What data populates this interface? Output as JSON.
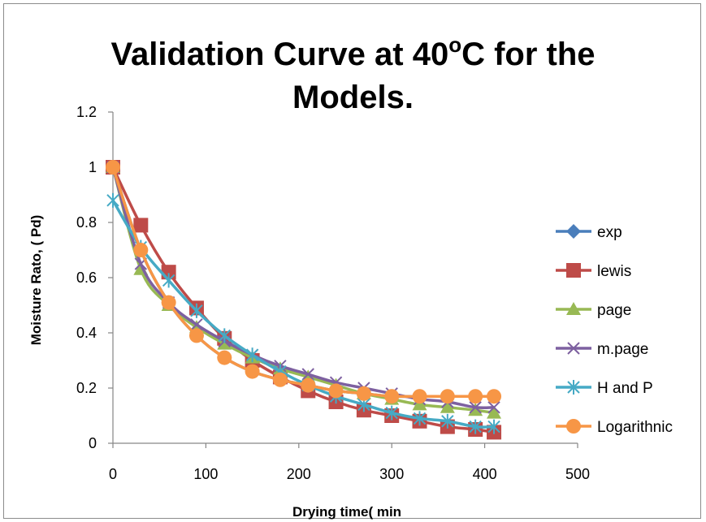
{
  "chart_data": {
    "type": "line",
    "title_pre": "Validation Curve at 40",
    "title_sup": "o",
    "title_post": "C for the",
    "title_line2": "Models.",
    "xlabel": "Drying time( min",
    "ylabel": "Moisture Rato, ( Pd)",
    "xlim": [
      0,
      500
    ],
    "ylim": [
      0,
      1.2
    ],
    "xticks": [
      "0",
      "100",
      "200",
      "300",
      "400",
      "500"
    ],
    "yticks": [
      "0",
      "0.2",
      "0.4",
      "0.6",
      "0.8",
      "1",
      "1.2"
    ],
    "grid": false,
    "legend_position": "right",
    "x": [
      0,
      30,
      60,
      90,
      120,
      150,
      180,
      210,
      240,
      270,
      300,
      330,
      360,
      390,
      410
    ],
    "series": [
      {
        "name": "exp",
        "color": "#4a7ebb",
        "marker": "diamond",
        "values": [
          1.0,
          0.7,
          0.51,
          0.39,
          0.31,
          0.26,
          0.23,
          0.21,
          0.19,
          0.18,
          0.17,
          0.17,
          0.17,
          0.17,
          0.17
        ]
      },
      {
        "name": "lewis",
        "color": "#be4b48",
        "marker": "square",
        "values": [
          1.0,
          0.79,
          0.62,
          0.49,
          0.38,
          0.3,
          0.24,
          0.19,
          0.15,
          0.12,
          0.1,
          0.08,
          0.06,
          0.05,
          0.04
        ]
      },
      {
        "name": "page",
        "color": "#98b954",
        "marker": "triangle",
        "values": [
          1.0,
          0.63,
          0.5,
          0.42,
          0.36,
          0.31,
          0.27,
          0.24,
          0.21,
          0.18,
          0.16,
          0.14,
          0.13,
          0.12,
          0.11
        ]
      },
      {
        "name": "m.page",
        "color": "#7d60a0",
        "marker": "x",
        "values": [
          1.0,
          0.65,
          0.51,
          0.43,
          0.37,
          0.32,
          0.28,
          0.25,
          0.22,
          0.2,
          0.18,
          0.16,
          0.15,
          0.13,
          0.13
        ]
      },
      {
        "name": "H and P",
        "color": "#46aac5",
        "marker": "star",
        "values": [
          0.88,
          0.71,
          0.59,
          0.48,
          0.39,
          0.32,
          0.26,
          0.21,
          0.17,
          0.14,
          0.11,
          0.09,
          0.08,
          0.06,
          0.06
        ]
      },
      {
        "name": "Logarithnic",
        "color": "#f79646",
        "marker": "circle",
        "values": [
          1.0,
          0.7,
          0.51,
          0.39,
          0.31,
          0.26,
          0.23,
          0.21,
          0.19,
          0.18,
          0.17,
          0.17,
          0.17,
          0.17,
          0.17
        ]
      }
    ]
  }
}
